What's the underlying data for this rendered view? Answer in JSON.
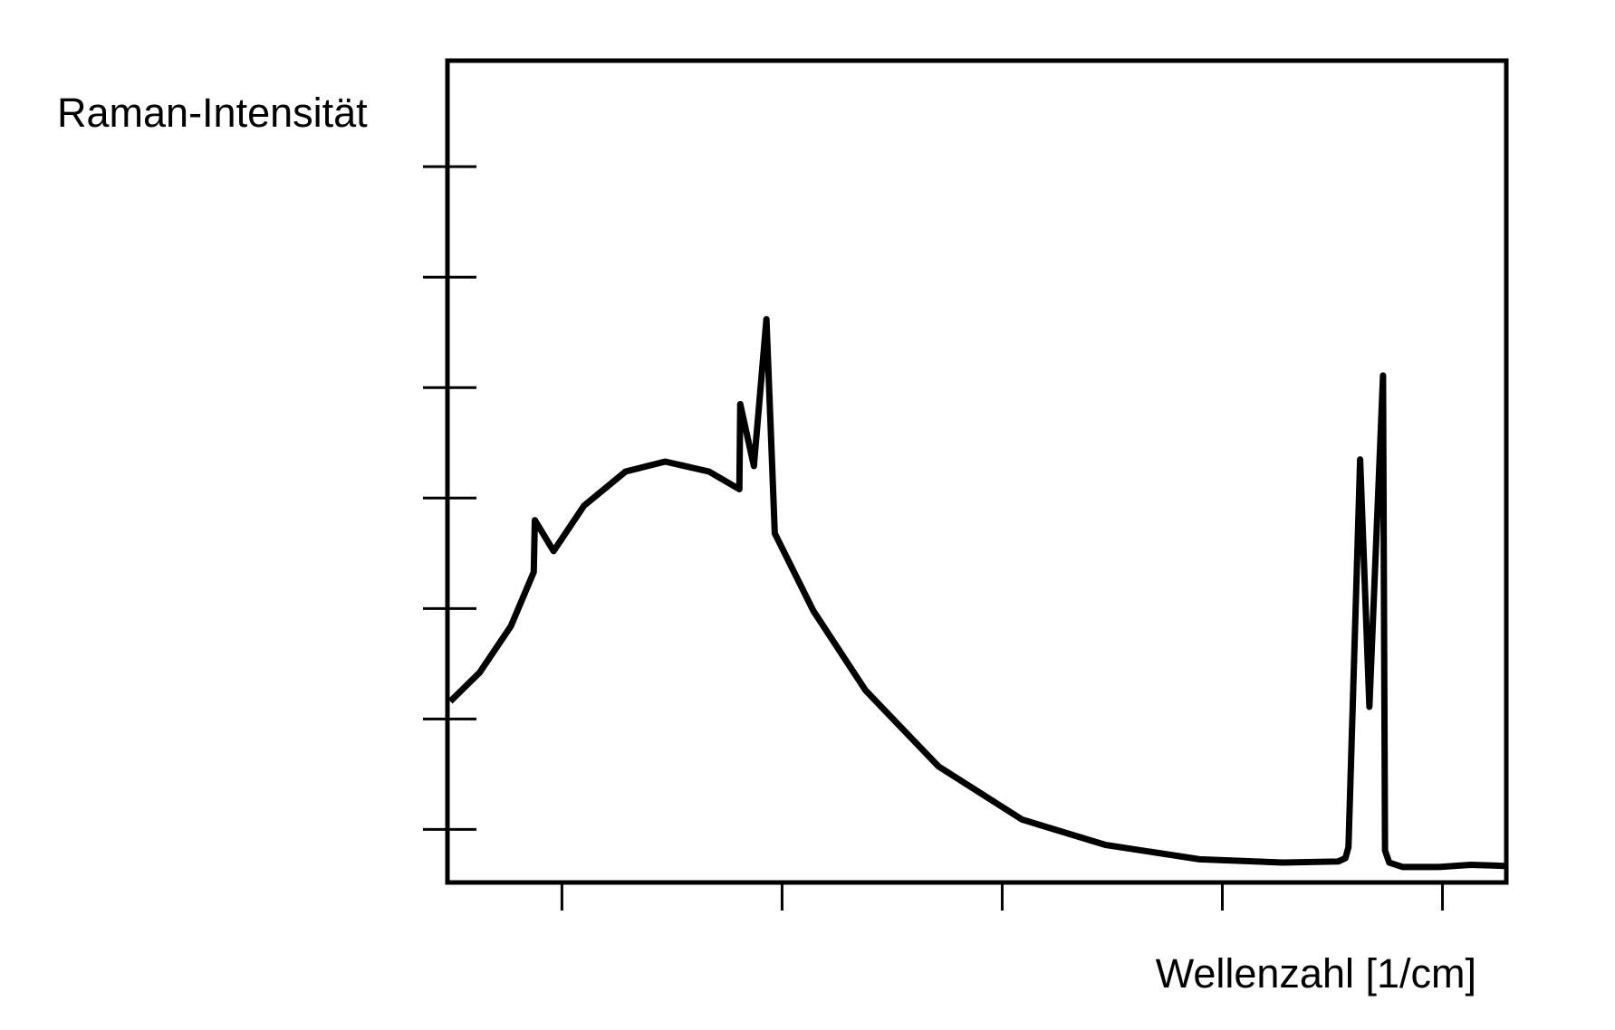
{
  "chart_data": {
    "type": "line",
    "y_label": "Raman-Intensität",
    "x_label": "Wellenzahl [1/cm]",
    "xlim": [
      0.48,
      5.29
    ],
    "ylim": [
      0.52,
      7.96
    ],
    "xticks": [
      1,
      2,
      3,
      4,
      5
    ],
    "yticks": [
      1,
      2,
      3,
      4,
      5,
      6,
      7
    ],
    "color": "#000000",
    "x": [
      0.493,
      0.626,
      0.768,
      0.872,
      0.877,
      0.962,
      1.1,
      1.289,
      1.469,
      1.668,
      1.806,
      1.81,
      1.872,
      1.929,
      1.967,
      2.142,
      2.379,
      2.711,
      3.09,
      3.469,
      3.896,
      4.275,
      4.526,
      4.559,
      4.573,
      4.626,
      4.668,
      4.73,
      4.739,
      4.758,
      4.82,
      4.986,
      5.128,
      5.28
    ],
    "values": [
      2.16,
      2.42,
      2.84,
      3.33,
      3.8,
      3.52,
      3.93,
      4.24,
      4.33,
      4.24,
      4.08,
      4.85,
      4.29,
      5.62,
      3.68,
      2.98,
      2.26,
      1.57,
      1.09,
      0.86,
      0.73,
      0.7,
      0.71,
      0.74,
      0.84,
      4.35,
      2.11,
      5.11,
      0.81,
      0.7,
      0.66,
      0.66,
      0.68,
      0.67
    ]
  }
}
